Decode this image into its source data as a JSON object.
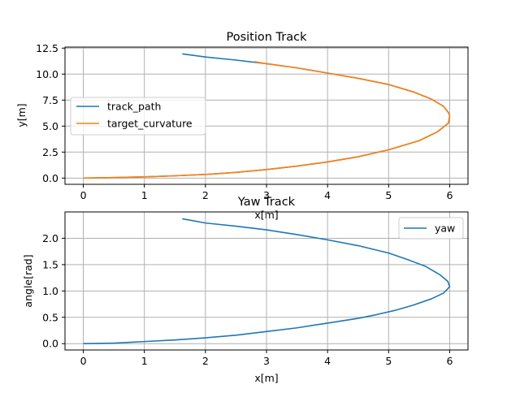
{
  "chart_data": [
    {
      "type": "line",
      "title": "Position Track",
      "xlabel": "x[m]",
      "ylabel": "y[m]",
      "xlim": [
        -0.3,
        6.3
      ],
      "ylim": [
        -0.6,
        12.6
      ],
      "xticks": [
        0,
        1,
        2,
        3,
        4,
        5,
        6
      ],
      "xtick_labels": [
        "0",
        "1",
        "2",
        "3",
        "4",
        "5",
        "6"
      ],
      "yticks": [
        0.0,
        2.5,
        5.0,
        7.5,
        10.0,
        12.5
      ],
      "ytick_labels": [
        "0.0",
        "2.5",
        "5.0",
        "7.5",
        "10.0",
        "12.5"
      ],
      "grid": true,
      "legend_position": "center-left",
      "series": [
        {
          "name": "track_path",
          "color": "#1f77b4",
          "points": [
            [
              0.0,
              0.0
            ],
            [
              0.5,
              0.05
            ],
            [
              1.0,
              0.12
            ],
            [
              1.5,
              0.22
            ],
            [
              2.0,
              0.35
            ],
            [
              2.5,
              0.55
            ],
            [
              3.0,
              0.82
            ],
            [
              3.5,
              1.15
            ],
            [
              4.0,
              1.55
            ],
            [
              4.5,
              2.05
            ],
            [
              5.0,
              2.72
            ],
            [
              5.5,
              3.6
            ],
            [
              5.8,
              4.45
            ],
            [
              5.98,
              5.3
            ],
            [
              6.0,
              6.0
            ],
            [
              5.98,
              6.3
            ],
            [
              5.9,
              6.9
            ],
            [
              5.7,
              7.6
            ],
            [
              5.4,
              8.3
            ],
            [
              5.0,
              9.0
            ],
            [
              4.5,
              9.6
            ],
            [
              4.0,
              10.1
            ],
            [
              3.5,
              10.6
            ],
            [
              3.0,
              11.0
            ],
            [
              2.5,
              11.35
            ],
            [
              2.0,
              11.65
            ],
            [
              1.62,
              11.95
            ]
          ]
        },
        {
          "name": "target_curvature",
          "color": "#ff7f0e",
          "points": [
            [
              0.0,
              0.0
            ],
            [
              0.5,
              0.05
            ],
            [
              1.0,
              0.12
            ],
            [
              1.5,
              0.22
            ],
            [
              2.0,
              0.35
            ],
            [
              2.5,
              0.55
            ],
            [
              3.0,
              0.82
            ],
            [
              3.5,
              1.15
            ],
            [
              4.0,
              1.55
            ],
            [
              4.5,
              2.05
            ],
            [
              5.0,
              2.72
            ],
            [
              5.5,
              3.6
            ],
            [
              5.8,
              4.45
            ],
            [
              5.98,
              5.3
            ],
            [
              6.0,
              6.0
            ],
            [
              5.98,
              6.3
            ],
            [
              5.9,
              6.9
            ],
            [
              5.7,
              7.6
            ],
            [
              5.4,
              8.3
            ],
            [
              5.0,
              9.0
            ],
            [
              4.5,
              9.6
            ],
            [
              4.0,
              10.1
            ],
            [
              3.5,
              10.6
            ],
            [
              3.0,
              11.0
            ],
            [
              2.8,
              11.2
            ]
          ]
        }
      ]
    },
    {
      "type": "line",
      "title": "Yaw Track",
      "xlabel": "x[m]",
      "ylabel": "angle[rad]",
      "xlim": [
        -0.3,
        6.3
      ],
      "ylim": [
        -0.12,
        2.5
      ],
      "xticks": [
        0,
        1,
        2,
        3,
        4,
        5,
        6
      ],
      "xtick_labels": [
        "0",
        "1",
        "2",
        "3",
        "4",
        "5",
        "6"
      ],
      "yticks": [
        0.0,
        0.5,
        1.0,
        1.5,
        2.0
      ],
      "ytick_labels": [
        "0.0",
        "0.5",
        "1.0",
        "1.5",
        "2.0"
      ],
      "grid": true,
      "legend_position": "top-right",
      "series": [
        {
          "name": "yaw",
          "color": "#1f77b4",
          "points": [
            [
              0.0,
              0.0
            ],
            [
              0.5,
              0.01
            ],
            [
              1.0,
              0.04
            ],
            [
              1.5,
              0.07
            ],
            [
              2.0,
              0.11
            ],
            [
              2.5,
              0.16
            ],
            [
              3.0,
              0.23
            ],
            [
              3.5,
              0.3
            ],
            [
              4.0,
              0.39
            ],
            [
              4.5,
              0.48
            ],
            [
              4.8,
              0.55
            ],
            [
              5.1,
              0.63
            ],
            [
              5.4,
              0.73
            ],
            [
              5.7,
              0.85
            ],
            [
              5.9,
              0.96
            ],
            [
              6.0,
              1.08
            ],
            [
              5.97,
              1.18
            ],
            [
              5.85,
              1.3
            ],
            [
              5.6,
              1.47
            ],
            [
              5.3,
              1.6
            ],
            [
              5.0,
              1.72
            ],
            [
              4.5,
              1.86
            ],
            [
              4.0,
              1.97
            ],
            [
              3.5,
              2.07
            ],
            [
              3.0,
              2.16
            ],
            [
              2.5,
              2.23
            ],
            [
              2.0,
              2.29
            ],
            [
              1.62,
              2.37
            ]
          ]
        }
      ]
    }
  ]
}
